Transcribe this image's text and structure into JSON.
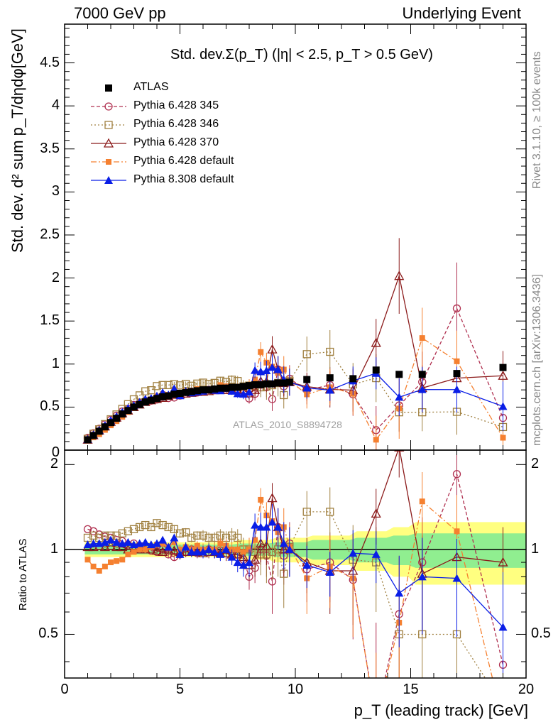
{
  "header": {
    "left": "7000 GeV pp",
    "right": "Underlying Event"
  },
  "side_labels": {
    "rivet": "Rivet 3.1.10, ≥ 100k events",
    "mcplots": "mcplots.cern.ch [arXiv:1306.3436]"
  },
  "watermark": "ATLAS_2010_S8894728",
  "colors": {
    "ATLAS": "#000000",
    "p345": "#b03050",
    "p346": "#a08040",
    "p370": "#8b1a1a",
    "p6def": "#f58030",
    "p8def": "#0a1ee6",
    "band_inner": "#90ee90",
    "band_outer": "#ffff80"
  },
  "chart_data": {
    "type": "line",
    "title": "Std. dev.Σ(p_T) (|η| < 2.5, p_T > 0.5 GeV)",
    "xlabel": "p_T (leading track) [GeV]",
    "ylabel": "Std. dev. d² sum p_T/dηdφ[GeV]",
    "ratio_ylabel": "Ratio to ATLAS",
    "xlim": [
      0,
      20
    ],
    "ylim": [
      0,
      4.95
    ],
    "ratio_ylim": [
      0.35,
      2.25
    ],
    "ratio_log": true,
    "x_ticks": [
      "0",
      "5",
      "10",
      "15",
      "20"
    ],
    "y_ticks": [
      "0",
      "0.5",
      "1",
      "1.5",
      "2",
      "2.5",
      "3",
      "3.5",
      "4",
      "4.5"
    ],
    "ratio_ticks": [
      "0.5",
      "1",
      "2"
    ],
    "legend_position": "top-left",
    "x": [
      1.0,
      1.25,
      1.5,
      1.75,
      2.0,
      2.25,
      2.5,
      2.75,
      3.0,
      3.25,
      3.5,
      3.75,
      4.0,
      4.25,
      4.5,
      4.75,
      5.0,
      5.25,
      5.5,
      5.75,
      6.0,
      6.25,
      6.5,
      6.75,
      7.0,
      7.25,
      7.5,
      7.75,
      8.0,
      8.25,
      8.5,
      8.75,
      9.0,
      9.25,
      9.5,
      9.75,
      10.5,
      11.5,
      12.5,
      13.5,
      14.5,
      15.5,
      17.0,
      19.0
    ],
    "data": {
      "name": "ATLAS",
      "values": [
        0.12,
        0.17,
        0.22,
        0.27,
        0.32,
        0.37,
        0.42,
        0.46,
        0.5,
        0.53,
        0.56,
        0.58,
        0.6,
        0.62,
        0.63,
        0.65,
        0.66,
        0.67,
        0.68,
        0.69,
        0.7,
        0.7,
        0.71,
        0.72,
        0.72,
        0.73,
        0.73,
        0.74,
        0.75,
        0.76,
        0.76,
        0.77,
        0.77,
        0.78,
        0.78,
        0.79,
        0.82,
        0.84,
        0.83,
        0.93,
        0.88,
        0.88,
        0.89,
        0.96
      ],
      "band_inner": [
        [
          7.5,
          0.04
        ],
        [
          9.0,
          0.05
        ],
        [
          10.5,
          0.06
        ],
        [
          12.5,
          0.08
        ],
        [
          14.0,
          0.1
        ],
        [
          15.0,
          0.12
        ],
        [
          20.0,
          0.14
        ]
      ],
      "band_outer": [
        [
          7.5,
          0.06
        ],
        [
          9.0,
          0.08
        ],
        [
          10.5,
          0.1
        ],
        [
          12.5,
          0.12
        ],
        [
          14.0,
          0.16
        ],
        [
          15.0,
          0.2
        ],
        [
          20.0,
          0.25
        ]
      ]
    },
    "series": [
      {
        "name": "Pythia 6.428 345",
        "ratio": [
          1.18,
          1.16,
          1.13,
          1.11,
          1.1,
          1.08,
          1.07,
          1.04,
          1.05,
          1.03,
          1.02,
          0.99,
          0.98,
          1.0,
          0.96,
          0.94,
          0.96,
          0.98,
          1.0,
          0.97,
          0.99,
          1.0,
          0.98,
          0.99,
          1.0,
          0.97,
          0.96,
          0.92,
          0.8,
          0.86,
          1.0,
          0.95,
          0.77,
          1.2,
          0.95,
          1.05,
          0.85,
          0.9,
          0.78,
          0.25,
          0.59,
          0.9,
          1.85,
          0.39
        ],
        "err": [
          0.02,
          0.02,
          0.02,
          0.02,
          0.02,
          0.02,
          0.02,
          0.02,
          0.02,
          0.02,
          0.02,
          0.02,
          0.02,
          0.03,
          0.03,
          0.03,
          0.03,
          0.04,
          0.04,
          0.04,
          0.05,
          0.05,
          0.05,
          0.05,
          0.06,
          0.06,
          0.07,
          0.08,
          0.08,
          0.1,
          0.12,
          0.15,
          0.18,
          0.2,
          0.2,
          0.2,
          0.2,
          0.25,
          0.3,
          0.3,
          0.35,
          0.4,
          0.6,
          0.4
        ]
      },
      {
        "name": "Pythia 6.428 346",
        "ratio": [
          1.1,
          1.12,
          1.1,
          1.12,
          1.12,
          1.12,
          1.14,
          1.16,
          1.18,
          1.2,
          1.22,
          1.2,
          1.24,
          1.22,
          1.2,
          1.18,
          1.14,
          1.15,
          1.1,
          1.12,
          1.12,
          1.1,
          1.1,
          1.12,
          1.1,
          1.12,
          1.1,
          1.0,
          1.0,
          0.98,
          0.96,
          0.96,
          0.98,
          1.0,
          0.82,
          1.02,
          1.36,
          1.36,
          0.92,
          0.9,
          0.5,
          0.5,
          0.5,
          0.28
        ],
        "err": [
          0.02,
          0.02,
          0.02,
          0.02,
          0.02,
          0.02,
          0.02,
          0.02,
          0.02,
          0.03,
          0.03,
          0.03,
          0.03,
          0.03,
          0.03,
          0.04,
          0.04,
          0.04,
          0.04,
          0.04,
          0.05,
          0.05,
          0.05,
          0.06,
          0.06,
          0.07,
          0.08,
          0.1,
          0.1,
          0.15,
          0.15,
          0.2,
          0.2,
          0.2,
          0.2,
          0.2,
          0.25,
          0.3,
          0.3,
          0.3,
          0.25,
          0.25,
          0.3,
          0.2
        ]
      },
      {
        "name": "Pythia 6.428 370",
        "ratio": [
          1.02,
          1.02,
          1.03,
          1.02,
          1.03,
          1.02,
          1.02,
          1.0,
          1.0,
          1.0,
          1.0,
          1.0,
          0.99,
          0.98,
          1.0,
          0.99,
          0.98,
          0.98,
          0.98,
          0.98,
          0.97,
          0.98,
          0.98,
          0.97,
          0.97,
          0.96,
          0.96,
          0.94,
          0.88,
          0.92,
          1.05,
          1.03,
          1.52,
          1.2,
          1.0,
          1.0,
          0.9,
          0.84,
          0.84,
          1.34,
          2.3,
          0.82,
          0.94,
          0.9
        ],
        "err": [
          0.02,
          0.02,
          0.02,
          0.02,
          0.02,
          0.02,
          0.02,
          0.02,
          0.02,
          0.02,
          0.02,
          0.02,
          0.03,
          0.03,
          0.03,
          0.03,
          0.03,
          0.04,
          0.04,
          0.04,
          0.04,
          0.05,
          0.05,
          0.05,
          0.06,
          0.06,
          0.07,
          0.08,
          0.1,
          0.12,
          0.15,
          0.15,
          0.2,
          0.2,
          0.2,
          0.2,
          0.2,
          0.25,
          0.3,
          0.3,
          0.5,
          0.3,
          0.3,
          0.3
        ]
      },
      {
        "name": "Pythia 6.428 default",
        "ratio": [
          0.92,
          0.87,
          0.84,
          0.87,
          0.9,
          0.91,
          0.92,
          0.96,
          0.98,
          1.0,
          1.0,
          1.02,
          1.04,
          1.05,
          1.02,
          1.06,
          1.0,
          1.02,
          1.0,
          1.03,
          1.0,
          1.0,
          1.0,
          1.05,
          1.03,
          1.0,
          1.0,
          0.98,
          1.0,
          1.08,
          1.5,
          1.32,
          1.26,
          1.15,
          1.2,
          1.02,
          0.79,
          0.87,
          0.79,
          0.13,
          0.55,
          1.48,
          1.16,
          0.15
        ],
        "err": [
          0.02,
          0.02,
          0.02,
          0.02,
          0.02,
          0.02,
          0.02,
          0.02,
          0.02,
          0.02,
          0.03,
          0.03,
          0.03,
          0.03,
          0.03,
          0.03,
          0.04,
          0.04,
          0.04,
          0.04,
          0.05,
          0.05,
          0.05,
          0.05,
          0.06,
          0.06,
          0.07,
          0.08,
          0.1,
          0.12,
          0.15,
          0.15,
          0.2,
          0.2,
          0.2,
          0.2,
          0.2,
          0.25,
          0.3,
          0.3,
          0.4,
          0.4,
          0.4,
          0.3
        ]
      },
      {
        "name": "Pythia 8.308 default",
        "ratio": [
          1.04,
          1.05,
          1.05,
          1.06,
          1.08,
          1.06,
          1.05,
          1.06,
          1.04,
          1.05,
          1.06,
          1.04,
          1.05,
          1.08,
          1.02,
          1.1,
          0.96,
          1.02,
          0.98,
          0.98,
          0.98,
          1.0,
          0.98,
          0.96,
          1.0,
          0.94,
          0.9,
          0.88,
          0.9,
          1.22,
          1.2,
          1.2,
          1.25,
          1.2,
          1.05,
          1.0,
          0.88,
          0.83,
          0.97,
          0.96,
          0.7,
          0.8,
          0.79,
          0.53
        ],
        "err": [
          0.02,
          0.02,
          0.02,
          0.02,
          0.02,
          0.02,
          0.02,
          0.02,
          0.02,
          0.02,
          0.03,
          0.03,
          0.03,
          0.03,
          0.03,
          0.03,
          0.04,
          0.04,
          0.04,
          0.04,
          0.05,
          0.05,
          0.05,
          0.05,
          0.06,
          0.06,
          0.07,
          0.08,
          0.1,
          0.12,
          0.15,
          0.15,
          0.2,
          0.2,
          0.2,
          0.2,
          0.15,
          0.15,
          0.2,
          0.2,
          0.25,
          0.3,
          0.3,
          0.3
        ]
      }
    ]
  }
}
